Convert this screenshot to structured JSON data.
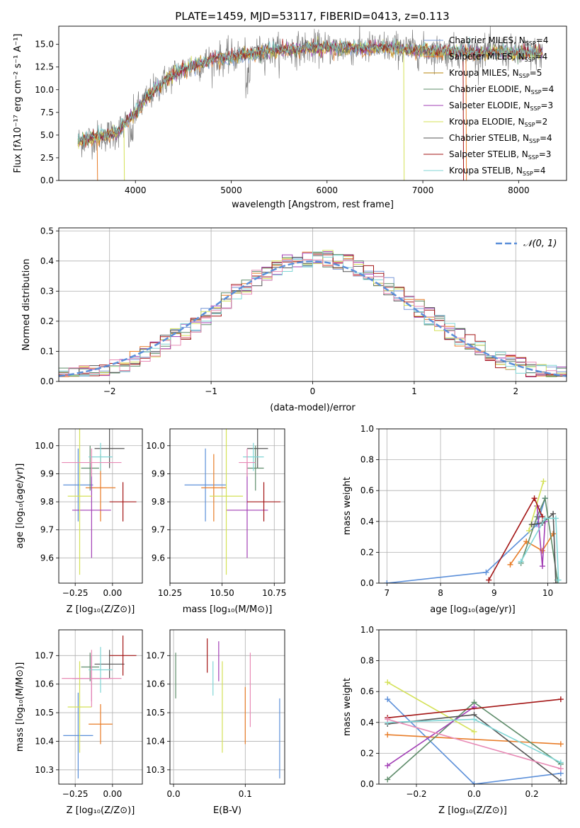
{
  "figure_title": "PLATE=1459, MJD=53117, FIBERID=0413, z=0.113",
  "colors": {
    "chabrier_miles": "#7b9ad8",
    "salpeter_miles": "#e87c27",
    "kroupa_miles": "#b8860b",
    "chabrier_elodie": "#5e8c6a",
    "salpeter_elodie": "#a23fb5",
    "kroupa_elodie": "#d4e157",
    "chabrier_stelib": "#555555",
    "salpeter_stelib": "#a31515",
    "kroupa_stelib": "#80d6d6",
    "pink": "#e88ab5",
    "normal_curve": "#5b8fd9",
    "grid": "#b0b0b0"
  },
  "chart_data": [
    {
      "id": "spectrum",
      "type": "line",
      "title": "PLATE=1459, MJD=53117, FIBERID=0413, z=0.113",
      "xlabel": "wavelength [Angstrom, rest frame]",
      "ylabel": "Flux [fλ10⁻¹⁷ erg cm⁻² s⁻¹ A⁻¹]",
      "xlim": [
        3200,
        8500
      ],
      "ylim": [
        0,
        17
      ],
      "xticks": [
        4000,
        5000,
        6000,
        7000,
        8000
      ],
      "yticks": [
        0.0,
        2.5,
        5.0,
        7.5,
        10.0,
        12.5,
        15.0
      ],
      "grid": false,
      "legend_position": "right",
      "legend": [
        {
          "label": "Chabrier MILES, N",
          "sub": "SSP",
          "suffix": "=4",
          "color": "#7b9ad8"
        },
        {
          "label": "Salpeter MILES, N",
          "sub": "SSP",
          "suffix": "=4",
          "color": "#e87c27"
        },
        {
          "label": "Kroupa MILES, N",
          "sub": "SSP",
          "suffix": "=5",
          "color": "#b8860b"
        },
        {
          "label": "Chabrier ELODIE, N",
          "sub": "SSP",
          "suffix": "=4",
          "color": "#5e8c6a"
        },
        {
          "label": "Salpeter ELODIE, N",
          "sub": "SSP",
          "suffix": "=3",
          "color": "#a23fb5"
        },
        {
          "label": "Kroupa ELODIE, N",
          "sub": "SSP",
          "suffix": "=2",
          "color": "#d4e157"
        },
        {
          "label": "Chabrier STELIB, N",
          "sub": "SSP",
          "suffix": "=4",
          "color": "#555555"
        },
        {
          "label": "Salpeter STELIB, N",
          "sub": "SSP",
          "suffix": "=3",
          "color": "#a31515"
        },
        {
          "label": "Kroupa STELIB, N",
          "sub": "SSP",
          "suffix": "=4",
          "color": "#80d6d6"
        }
      ],
      "continuum": {
        "x": [
          3400,
          3600,
          3800,
          4000,
          4200,
          4400,
          4600,
          4800,
          5000,
          5200,
          5400,
          5600,
          5800,
          6000,
          6200,
          6400,
          6600,
          6800,
          7000,
          7200,
          7400,
          7600,
          7800,
          8000,
          8200
        ],
        "y": [
          4.3,
          4.8,
          5.2,
          7.5,
          10.0,
          11.8,
          12.6,
          13.3,
          13.6,
          14.0,
          14.2,
          14.4,
          14.6,
          14.6,
          14.6,
          14.5,
          14.7,
          14.5,
          14.3,
          14.2,
          14.2,
          14.1,
          14.2,
          14.0,
          14.0
        ]
      }
    },
    {
      "id": "residuals",
      "type": "step",
      "xlabel": "(data-model)/error",
      "ylabel": "Normed distribution",
      "xlim": [
        -2.5,
        2.5
      ],
      "ylim": [
        0,
        0.51
      ],
      "xticks": [
        -2,
        -1,
        0,
        1,
        2
      ],
      "yticks": [
        0.0,
        0.1,
        0.2,
        0.3,
        0.4,
        0.5
      ],
      "grid": true,
      "legend_position": "upper-right",
      "legend": [
        {
          "label": "𝒩(0, 1)",
          "color": "#5b8fd9"
        }
      ],
      "bins": {
        "start": -2.5,
        "width": 0.1,
        "count": 50
      }
    },
    {
      "id": "age_vs_Z",
      "type": "errorbar",
      "xlabel": "Z [log₁₀(Z/Z⊙)]",
      "ylabel": "age  [log₁₀(age/yr)]",
      "xlim": [
        -0.36,
        0.2
      ],
      "ylim": [
        9.51,
        10.06
      ],
      "xticks": [
        -0.25,
        0.0
      ],
      "yticks": [
        9.6,
        9.7,
        9.8,
        9.9,
        10.0
      ],
      "grid": true,
      "points": [
        {
          "x": -0.23,
          "y": 9.86,
          "xerr": 0.1,
          "yerr": 0.13,
          "color": "#5b8fd9"
        },
        {
          "x": -0.08,
          "y": 9.85,
          "xerr": 0.1,
          "yerr": 0.12,
          "color": "#e87c27"
        },
        {
          "x": -0.15,
          "y": 9.92,
          "xerr": 0.06,
          "yerr": 0.08,
          "color": "#5e8c6a"
        },
        {
          "x": -0.14,
          "y": 9.77,
          "xerr": 0.13,
          "yerr": 0.17,
          "color": "#a23fb5"
        },
        {
          "x": -0.22,
          "y": 9.82,
          "xerr": 0.08,
          "yerr": 0.28,
          "color": "#d4e157"
        },
        {
          "x": -0.02,
          "y": 9.99,
          "xerr": 0.1,
          "yerr": 0.07,
          "color": "#555555"
        },
        {
          "x": 0.07,
          "y": 9.8,
          "xerr": 0.09,
          "yerr": 0.07,
          "color": "#a31515"
        },
        {
          "x": -0.08,
          "y": 9.96,
          "xerr": 0.08,
          "yerr": 0.05,
          "color": "#80d6d6"
        },
        {
          "x": -0.14,
          "y": 9.94,
          "xerr": 0.2,
          "yerr": 0.05,
          "color": "#e88ab5"
        }
      ]
    },
    {
      "id": "age_vs_mass",
      "type": "errorbar",
      "xlabel": "mass [log₁₀(M/M⊙)]",
      "ylabel": "",
      "xlim": [
        10.25,
        10.8
      ],
      "ylim": [
        9.51,
        10.06
      ],
      "xticks": [
        10.25,
        10.5,
        10.75
      ],
      "yticks": [
        9.6,
        9.7,
        9.8,
        9.9,
        10.0
      ],
      "grid": true,
      "points": [
        {
          "x": 10.42,
          "y": 9.86,
          "xerr": 0.1,
          "yerr": 0.13,
          "color": "#5b8fd9"
        },
        {
          "x": 10.46,
          "y": 9.85,
          "xerr": 0.06,
          "yerr": 0.12,
          "color": "#e87c27"
        },
        {
          "x": 10.66,
          "y": 9.92,
          "xerr": 0.04,
          "yerr": 0.08,
          "color": "#5e8c6a"
        },
        {
          "x": 10.62,
          "y": 9.77,
          "xerr": 0.1,
          "yerr": 0.17,
          "color": "#a23fb5"
        },
        {
          "x": 10.52,
          "y": 9.82,
          "xerr": 0.08,
          "yerr": 0.28,
          "color": "#d4e157"
        },
        {
          "x": 10.67,
          "y": 9.99,
          "xerr": 0.05,
          "yerr": 0.07,
          "color": "#555555"
        },
        {
          "x": 10.7,
          "y": 9.8,
          "xerr": 0.08,
          "yerr": 0.07,
          "color": "#a31515"
        },
        {
          "x": 10.65,
          "y": 9.96,
          "xerr": 0.05,
          "yerr": 0.05,
          "color": "#80d6d6"
        },
        {
          "x": 10.62,
          "y": 9.94,
          "xerr": 0.04,
          "yerr": 0.05,
          "color": "#e88ab5"
        }
      ]
    },
    {
      "id": "weight_vs_age",
      "type": "line",
      "xlabel": "age  [log₁₀(age/yr)]",
      "ylabel": "mass weight",
      "xlim": [
        6.85,
        10.35
      ],
      "ylim": [
        0,
        1
      ],
      "xticks": [
        7,
        8,
        9,
        10
      ],
      "yticks": [
        0.0,
        0.2,
        0.4,
        0.6,
        0.8,
        1.0
      ],
      "grid": true,
      "series": [
        {
          "color": "#5b8fd9",
          "x": [
            7.0,
            8.85,
            9.8,
            9.95
          ],
          "y": [
            0.0,
            0.07,
            0.38,
            0.55
          ]
        },
        {
          "color": "#e87c27",
          "x": [
            9.3,
            9.6,
            9.9,
            10.1
          ],
          "y": [
            0.12,
            0.27,
            0.21,
            0.32
          ]
        },
        {
          "color": "#5e8c6a",
          "x": [
            9.5,
            9.8,
            9.95,
            10.18
          ],
          "y": [
            0.13,
            0.43,
            0.55,
            0.02
          ]
        },
        {
          "color": "#a23fb5",
          "x": [
            9.8,
            9.9,
            9.95
          ],
          "y": [
            0.5,
            0.11,
            0.4
          ]
        },
        {
          "color": "#d4e157",
          "x": [
            9.65,
            9.92
          ],
          "y": [
            0.34,
            0.66
          ]
        },
        {
          "color": "#555555",
          "x": [
            9.7,
            9.9,
            10.1,
            10.15
          ],
          "y": [
            0.38,
            0.39,
            0.45,
            0.0
          ]
        },
        {
          "color": "#a31515",
          "x": [
            8.9,
            9.75,
            9.9
          ],
          "y": [
            0.02,
            0.55,
            0.43
          ]
        },
        {
          "color": "#80d6d6",
          "x": [
            9.5,
            9.95,
            10.15,
            10.2
          ],
          "y": [
            0.14,
            0.42,
            0.42,
            0.02
          ]
        }
      ]
    },
    {
      "id": "mass_vs_Z",
      "type": "errorbar",
      "xlabel": "Z [log₁₀(Z/Z⊙)]",
      "ylabel": "mass [log₁₀(M/M⊙)]",
      "xlim": [
        -0.36,
        0.2
      ],
      "ylim": [
        10.25,
        10.79
      ],
      "xticks": [
        -0.25,
        0.0
      ],
      "yticks": [
        10.3,
        10.4,
        10.5,
        10.6,
        10.7
      ],
      "grid": true,
      "points": [
        {
          "x": -0.23,
          "y": 10.42,
          "xerr": 0.1,
          "yerr": 0.15,
          "color": "#5b8fd9"
        },
        {
          "x": -0.08,
          "y": 10.46,
          "xerr": 0.08,
          "yerr": 0.07,
          "color": "#e87c27"
        },
        {
          "x": -0.15,
          "y": 10.66,
          "xerr": 0.06,
          "yerr": 0.05,
          "color": "#5e8c6a"
        },
        {
          "x": -0.14,
          "y": 10.62,
          "xerr": 0.13,
          "yerr": 0.08,
          "color": "#a23fb5"
        },
        {
          "x": -0.22,
          "y": 10.52,
          "xerr": 0.08,
          "yerr": 0.16,
          "color": "#d4e157"
        },
        {
          "x": -0.02,
          "y": 10.67,
          "xerr": 0.1,
          "yerr": 0.05,
          "color": "#555555"
        },
        {
          "x": 0.07,
          "y": 10.7,
          "xerr": 0.09,
          "yerr": 0.07,
          "color": "#a31515"
        },
        {
          "x": -0.08,
          "y": 10.65,
          "xerr": 0.08,
          "yerr": 0.08,
          "color": "#80d6d6"
        },
        {
          "x": -0.14,
          "y": 10.62,
          "xerr": 0.2,
          "yerr": 0.1,
          "color": "#e88ab5"
        }
      ]
    },
    {
      "id": "mass_vs_EBV",
      "type": "errorbar",
      "xlabel": "E(B-V)",
      "ylabel": "",
      "xlim": [
        -0.005,
        0.155
      ],
      "ylim": [
        10.25,
        10.79
      ],
      "xticks": [
        0.0,
        0.1
      ],
      "yticks": [
        10.3,
        10.4,
        10.5,
        10.6,
        10.7
      ],
      "grid": true,
      "points": [
        {
          "x": 0.003,
          "y": 10.63,
          "xerr": 0,
          "yerr": 0.08,
          "color": "#5e8c6a"
        },
        {
          "x": 0.047,
          "y": 10.7,
          "xerr": 0,
          "yerr": 0.06,
          "color": "#a31515"
        },
        {
          "x": 0.055,
          "y": 10.62,
          "xerr": 0,
          "yerr": 0.06,
          "color": "#80d6d6"
        },
        {
          "x": 0.063,
          "y": 10.68,
          "xerr": 0,
          "yerr": 0.07,
          "color": "#a23fb5"
        },
        {
          "x": 0.068,
          "y": 10.52,
          "xerr": 0,
          "yerr": 0.16,
          "color": "#d4e157"
        },
        {
          "x": 0.1,
          "y": 10.49,
          "xerr": 0,
          "yerr": 0.1,
          "color": "#e87c27"
        },
        {
          "x": 0.107,
          "y": 10.58,
          "xerr": 0,
          "yerr": 0.13,
          "color": "#e88ab5"
        },
        {
          "x": 0.148,
          "y": 10.41,
          "xerr": 0,
          "yerr": 0.14,
          "color": "#5b8fd9"
        }
      ]
    },
    {
      "id": "weight_vs_Z",
      "type": "line",
      "xlabel": "Z [log₁₀(Z/Z⊙)]",
      "ylabel": "mass weight",
      "xlim": [
        -0.33,
        0.32
      ],
      "ylim": [
        0,
        1
      ],
      "xticks": [
        -0.2,
        0.0,
        0.2
      ],
      "yticks": [
        0.0,
        0.2,
        0.4,
        0.6,
        0.8,
        1.0
      ],
      "grid": true,
      "series": [
        {
          "color": "#5b8fd9",
          "x": [
            -0.3,
            0.0,
            0.3
          ],
          "y": [
            0.55,
            0.0,
            0.07
          ]
        },
        {
          "color": "#e87c27",
          "x": [
            -0.3,
            0.3
          ],
          "y": [
            0.32,
            0.26
          ]
        },
        {
          "color": "#5e8c6a",
          "x": [
            -0.3,
            0.0,
            0.3
          ],
          "y": [
            0.03,
            0.53,
            0.13
          ]
        },
        {
          "color": "#a23fb5",
          "x": [
            -0.3,
            0.0
          ],
          "y": [
            0.12,
            0.5
          ]
        },
        {
          "color": "#d4e157",
          "x": [
            -0.3,
            0.0
          ],
          "y": [
            0.66,
            0.34
          ]
        },
        {
          "color": "#555555",
          "x": [
            -0.3,
            0.0,
            0.3
          ],
          "y": [
            0.39,
            0.45,
            0.02
          ]
        },
        {
          "color": "#a31515",
          "x": [
            -0.3,
            0.3
          ],
          "y": [
            0.43,
            0.55
          ]
        },
        {
          "color": "#80d6d6",
          "x": [
            -0.3,
            0.0,
            0.3
          ],
          "y": [
            0.4,
            0.42,
            0.14
          ]
        },
        {
          "color": "#e88ab5",
          "x": [
            -0.3,
            0.3
          ],
          "y": [
            0.42,
            0.1
          ]
        }
      ]
    }
  ]
}
